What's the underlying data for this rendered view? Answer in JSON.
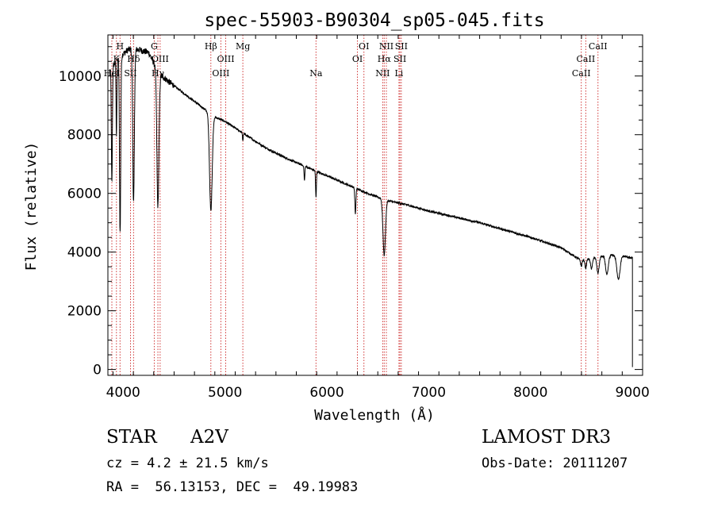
{
  "chart_data": {
    "type": "line",
    "title": "spec-55903-B90304_sp05-045.fits",
    "xlabel": "Wavelength (Å)",
    "ylabel": "Flux (relative)",
    "xlim": [
      3850,
      9100
    ],
    "ylim": [
      -200,
      11400
    ],
    "x_ticks": [
      4000,
      5000,
      6000,
      7000,
      8000,
      9000
    ],
    "y_ticks": [
      0,
      2000,
      4000,
      6000,
      8000,
      10000
    ],
    "series": [
      {
        "name": "flux",
        "continuum": {
          "x": [
            3870,
            3950,
            4050,
            4150,
            4250,
            4350,
            4450,
            4600,
            4750,
            4900,
            5000,
            5200,
            5400,
            5600,
            5800,
            6000,
            6200,
            6400,
            6600,
            6800,
            7000,
            7500,
            8000,
            8300,
            8500,
            8600,
            8700,
            8800,
            8900,
            8980
          ],
          "y": [
            10200,
            10600,
            10900,
            10900,
            10800,
            10100,
            9800,
            9400,
            9000,
            8600,
            8450,
            8000,
            7550,
            7200,
            6900,
            6600,
            6300,
            6000,
            5750,
            5600,
            5400,
            5000,
            4500,
            4150,
            3700,
            3800,
            3850,
            3900,
            3880,
            3800
          ]
        },
        "absorption_lines": [
          {
            "center": 3889,
            "depth": 4000,
            "width": 5
          },
          {
            "center": 3934,
            "depth": 2500,
            "width": 4
          },
          {
            "center": 3970,
            "depth": 6000,
            "width": 6
          },
          {
            "center": 4102,
            "depth": 5200,
            "width": 8
          },
          {
            "center": 4341,
            "depth": 4600,
            "width": 10
          },
          {
            "center": 4861,
            "depth": 3300,
            "width": 13
          },
          {
            "center": 5175,
            "depth": 250,
            "width": 4
          },
          {
            "center": 5780,
            "depth": 500,
            "width": 4
          },
          {
            "center": 5893,
            "depth": 900,
            "width": 4
          },
          {
            "center": 6280,
            "depth": 900,
            "width": 5
          },
          {
            "center": 6563,
            "depth": 1900,
            "width": 12
          },
          {
            "center": 8498,
            "depth": 200,
            "width": 6
          },
          {
            "center": 8542,
            "depth": 300,
            "width": 7
          },
          {
            "center": 8598,
            "depth": 350,
            "width": 10
          },
          {
            "center": 8662,
            "depth": 550,
            "width": 11
          },
          {
            "center": 8750,
            "depth": 650,
            "width": 13
          },
          {
            "center": 8863,
            "depth": 800,
            "width": 16
          }
        ],
        "end_drop": {
          "x": 9000,
          "y": 80
        }
      }
    ],
    "line_markers": [
      {
        "wavelength": 3889,
        "label": "HeI",
        "row": 3
      },
      {
        "wavelength": 3934,
        "label": "K",
        "row": 2
      },
      {
        "wavelength": 3969,
        "label": "H",
        "row": 1
      },
      {
        "wavelength": 4072,
        "label": "SII",
        "row": 3
      },
      {
        "wavelength": 4102,
        "label": "Hδ",
        "row": 2
      },
      {
        "wavelength": 4305,
        "label": "G",
        "row": 1
      },
      {
        "wavelength": 4341,
        "label": "Hγ",
        "row": 3
      },
      {
        "wavelength": 4363,
        "label": "OIII",
        "row": 2
      },
      {
        "wavelength": 4861,
        "label": "Hβ",
        "row": 1
      },
      {
        "wavelength": 4959,
        "label": "OIII",
        "row": 3
      },
      {
        "wavelength": 5007,
        "label": "OIII",
        "row": 2
      },
      {
        "wavelength": 5175,
        "label": "Mg",
        "row": 1
      },
      {
        "wavelength": 5893,
        "label": "Na",
        "row": 3
      },
      {
        "wavelength": 6300,
        "label": "OI",
        "row": 2
      },
      {
        "wavelength": 6364,
        "label": "OI",
        "row": 1
      },
      {
        "wavelength": 6548,
        "label": "NII",
        "row": 3
      },
      {
        "wavelength": 6563,
        "label": "Hα",
        "row": 2
      },
      {
        "wavelength": 6584,
        "label": "NII",
        "row": 1
      },
      {
        "wavelength": 6708,
        "label": "Li",
        "row": 3
      },
      {
        "wavelength": 6717,
        "label": "SII",
        "row": 2
      },
      {
        "wavelength": 6731,
        "label": "SII",
        "row": 1
      },
      {
        "wavelength": 8498,
        "label": "CaII",
        "row": 3
      },
      {
        "wavelength": 8542,
        "label": "CaII",
        "row": 2
      },
      {
        "wavelength": 8662,
        "label": "CaII",
        "row": 1
      }
    ]
  },
  "footer": {
    "object_type": "STAR",
    "subclass": "A2V",
    "survey": "LAMOST DR3",
    "redshift_text": "cz = 4.2 ± 21.5 km/s",
    "obs_date_text": "Obs-Date: 20111207",
    "radec_text": "RA =  56.13153, DEC =  49.19983"
  },
  "colors": {
    "axis": "#000000",
    "spectrum": "#000000",
    "marker_line": "#cc2222"
  }
}
